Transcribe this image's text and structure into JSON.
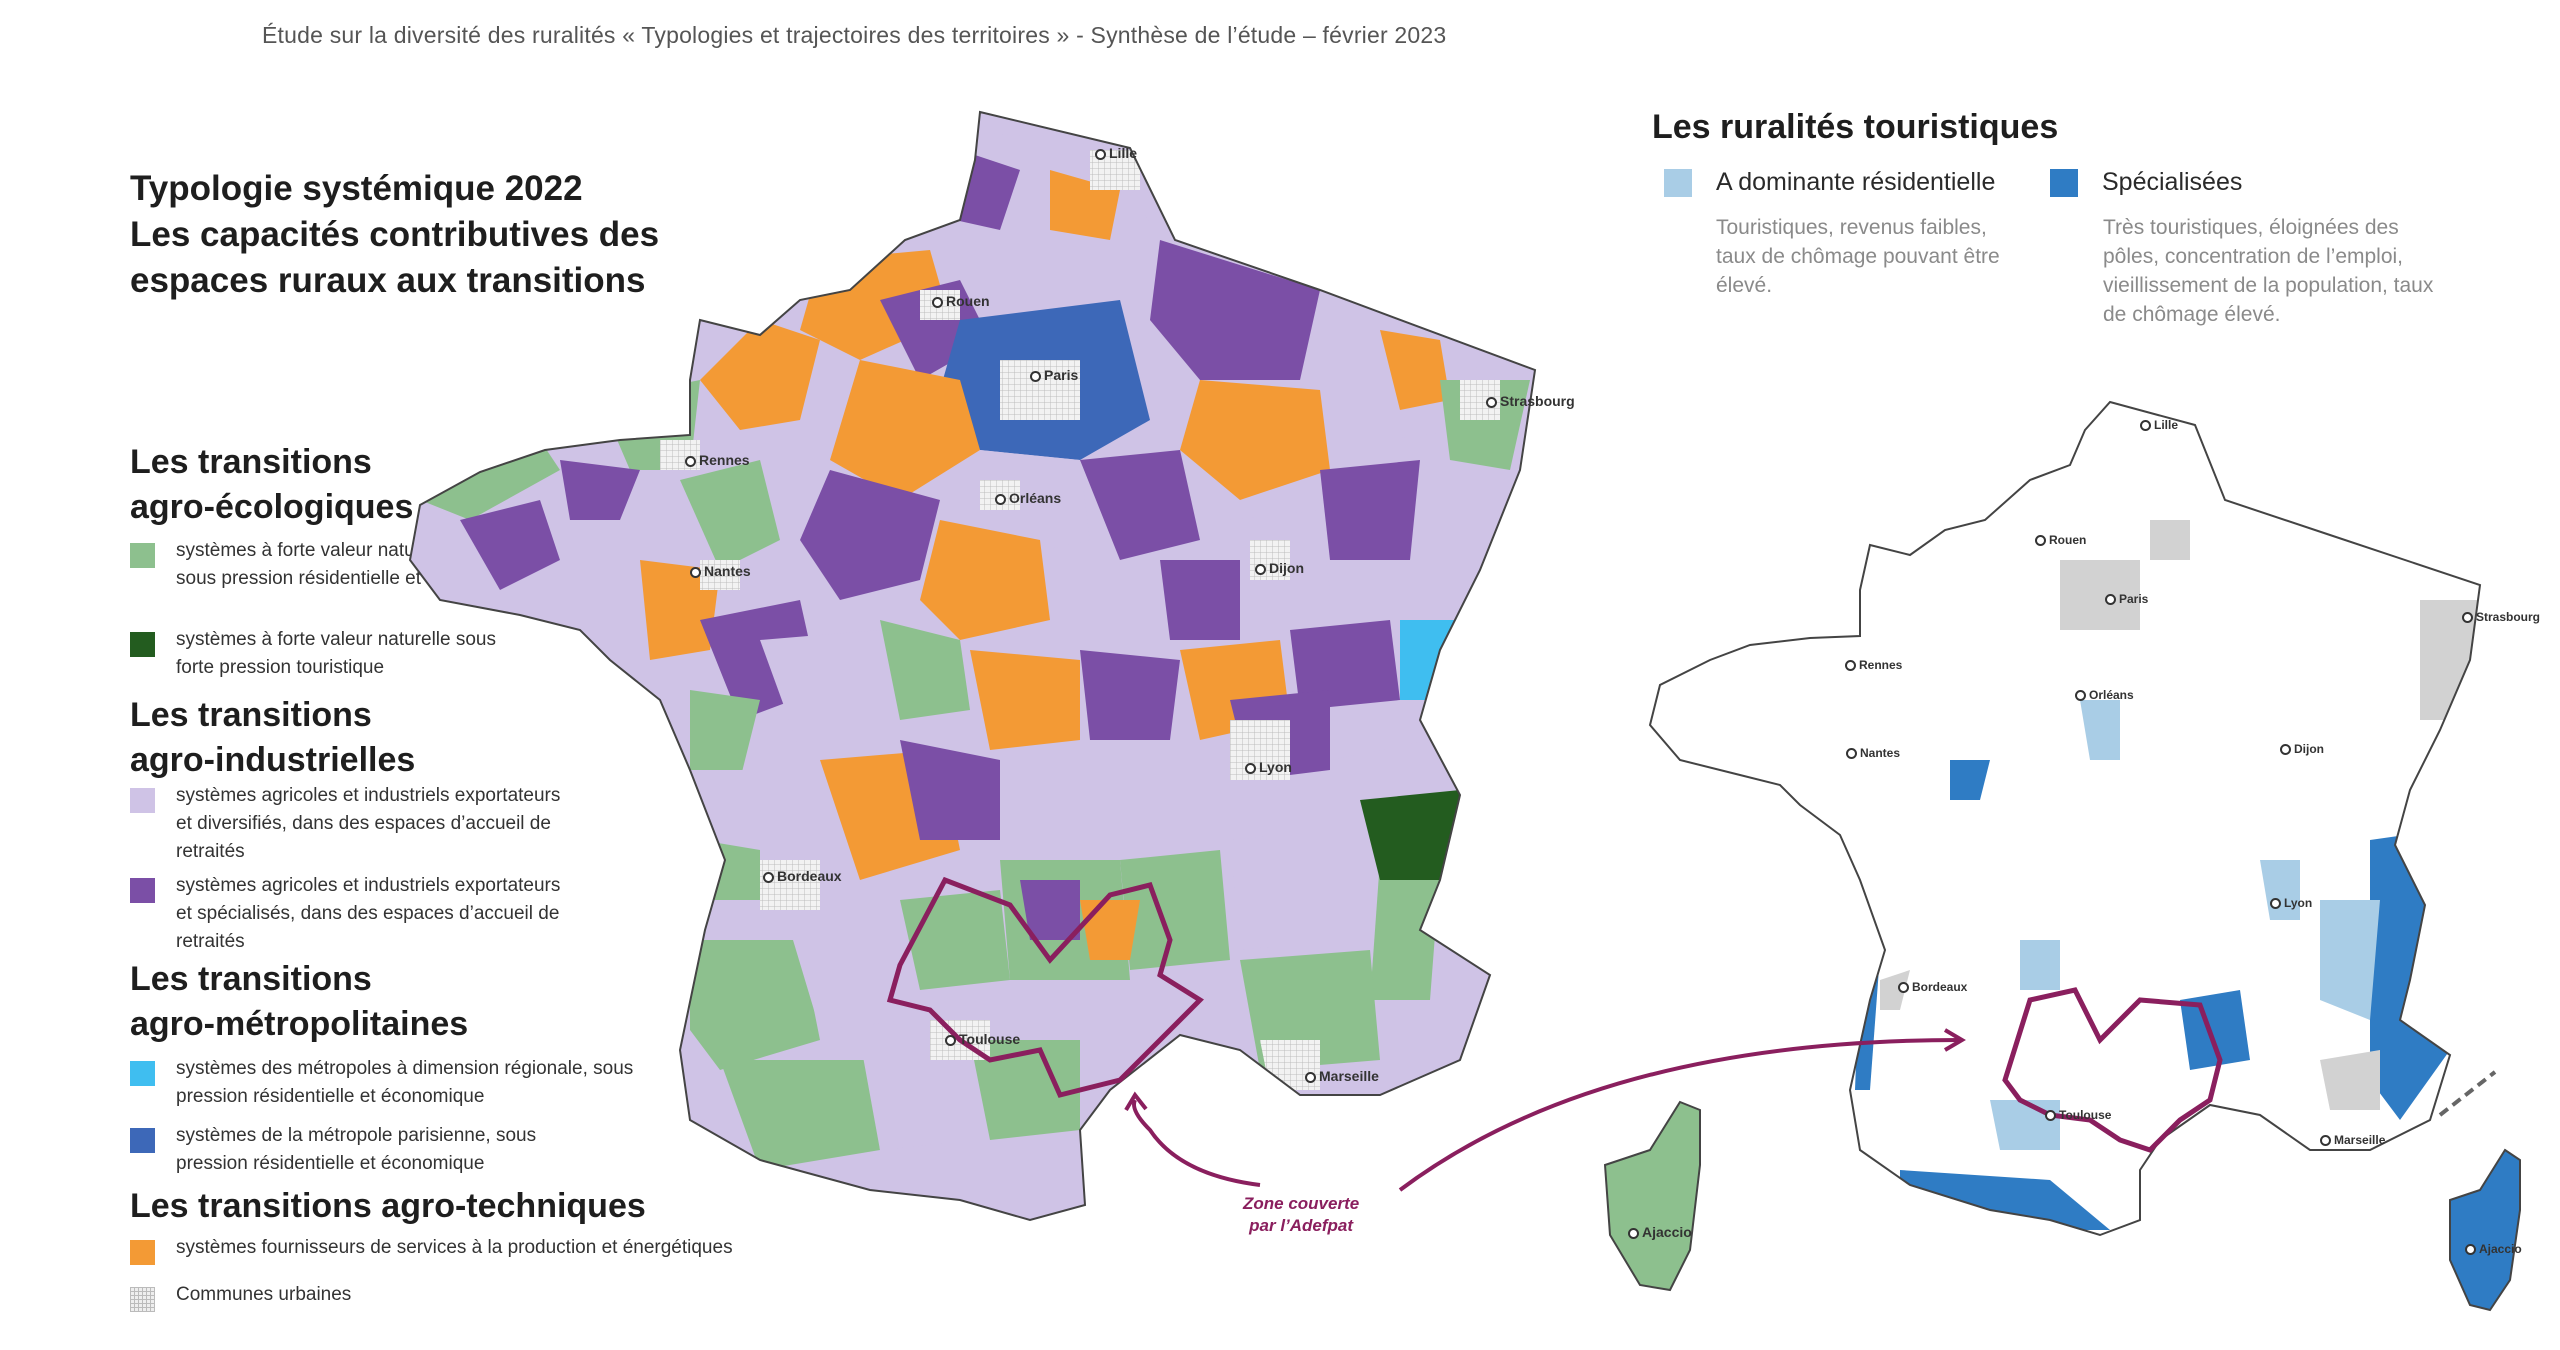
{
  "header": "Étude sur la diversité des ruralités  « Typologies et trajectoires des territoires » - Synthèse de l’étude – février 2023",
  "left_map": {
    "title_line1": "Typologie systémique 2022",
    "title_line2": "Les capacités contributives des",
    "title_line3": "espaces ruraux aux transitions",
    "sections": {
      "agro_eco": {
        "line1": "Les transitions",
        "line2": "agro-écologiques"
      },
      "agro_ind": {
        "line1": "Les transitions",
        "line2": "agro-industrielles"
      },
      "agro_metro": {
        "line1": "Les transitions",
        "line2": "agro-métropolitaines"
      },
      "agro_tech": {
        "line1": "Les transitions agro-techniques"
      }
    },
    "legend": [
      {
        "color": "#8dc08e",
        "text": "systèmes à forte valeur naturelle ou agricole sous pression résidentielle et touristique"
      },
      {
        "color": "#235c1f",
        "text": "systèmes à forte valeur naturelle sous forte pression touristique"
      },
      {
        "color": "#cfc3e6",
        "text": "systèmes agricoles et industriels exportateurs et diversifiés, dans des espaces d’accueil de retraités"
      },
      {
        "color": "#7b4fa6",
        "text": "systèmes agricoles et industriels exportateurs et spécialisés, dans des espaces d’accueil de retraités"
      },
      {
        "color": "#3fbef0",
        "text": "systèmes des métropoles à dimension régionale, sous pression résidentielle et économique"
      },
      {
        "color": "#3d68b8",
        "text": "systèmes de la métropole parisienne, sous pression résidentielle et économique"
      },
      {
        "color": "#f39a35",
        "text": "systèmes fournisseurs de services à la production et énergétiques"
      },
      {
        "color": "#d9d9d9",
        "text": "Communes urbaines"
      }
    ],
    "cities": {
      "lille": "Lille",
      "rouen": "Rouen",
      "paris": "Paris",
      "strasbourg": "Strasbourg",
      "rennes": "Rennes",
      "orleans": "Orléans",
      "nantes": "Nantes",
      "dijon": "Dijon",
      "lyon": "Lyon",
      "bordeaux": "Bordeaux",
      "toulouse": "Toulouse",
      "marseille": "Marseille"
    }
  },
  "right_map": {
    "title": "Les ruralités touristiques",
    "legend": [
      {
        "color": "#a9cde6",
        "label": "A dominante résidentielle",
        "desc": "Touristiques, revenus faibles, taux de chômage pouvant être élevé."
      },
      {
        "color": "#2f7cc4",
        "label": "Spécialisées",
        "desc": "Très touristiques, éloignées des pôles, concentration de l’emploi, vieillissement de la population, taux de chômage élevé."
      }
    ],
    "cities": {
      "lille": "Lille",
      "rouen": "Rouen",
      "paris": "Paris",
      "strasbourg": "Strasbourg",
      "rennes": "Rennes",
      "orleans": "Orléans",
      "nantes": "Nantes",
      "dijon": "Dijon",
      "lyon": "Lyon",
      "bordeaux": "Bordeaux",
      "toulouse": "Toulouse",
      "marseille": "Marseille",
      "ajaccio": "Ajaccio"
    }
  },
  "corsica_left": {
    "city": "Ajaccio"
  },
  "callout": {
    "line1": "Zone couverte",
    "line2": "par l’Adefpat"
  }
}
